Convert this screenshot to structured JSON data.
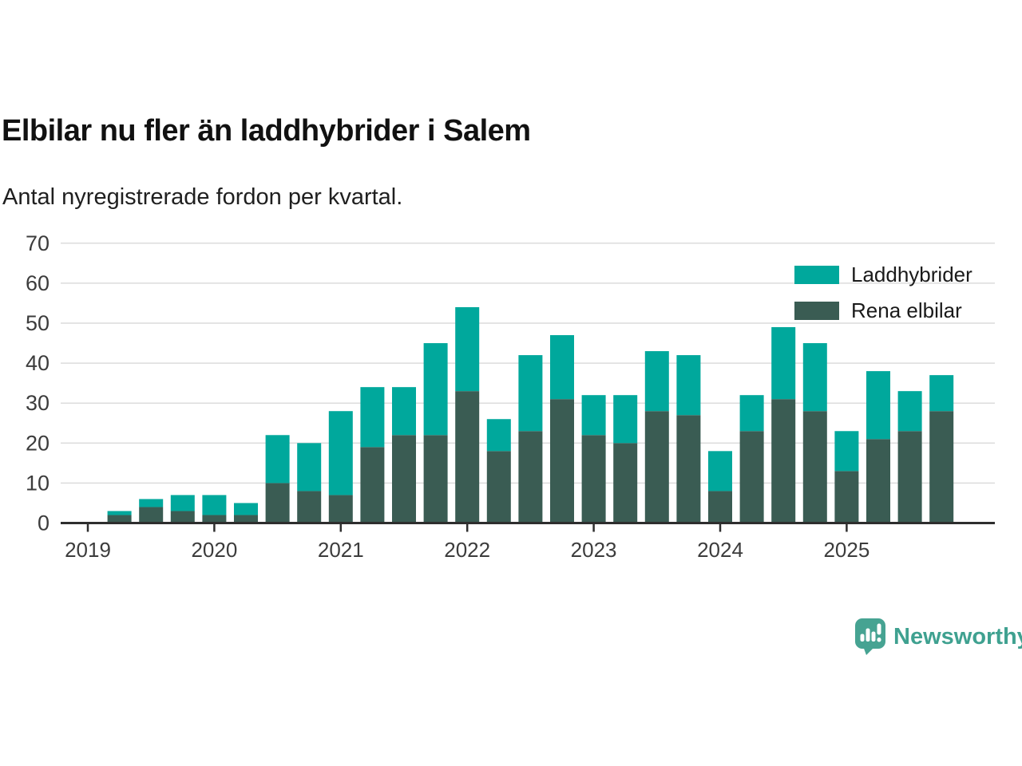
{
  "header": {
    "title": "Elbilar nu fler än laddhybrider i Salem",
    "subtitle": "Antal nyregistrerade fordon per kvartal."
  },
  "legend": {
    "items": [
      {
        "label": "Laddhybrider",
        "color": "#00a89c"
      },
      {
        "label": "Rena elbilar",
        "color": "#3a5c53"
      }
    ]
  },
  "footer": {
    "brand": "Newsworthy",
    "brand_color": "#3fa190"
  },
  "colors": {
    "laddhybrider": "#00a89c",
    "rena_elbilar": "#3a5c53",
    "gridline": "#dcdcdc",
    "axis": "#2e2e2e",
    "axis_text": "#3c3c3c"
  },
  "chart_data": {
    "type": "bar",
    "stacked": true,
    "title": "Elbilar nu fler än laddhybrider i Salem",
    "subtitle": "Antal nyregistrerade fordon per kvartal.",
    "x": [
      "2019Q2",
      "2019Q3",
      "2019Q4",
      "2020Q1",
      "2020Q2",
      "2020Q3",
      "2020Q4",
      "2021Q1",
      "2021Q2",
      "2021Q3",
      "2021Q4",
      "2022Q1",
      "2022Q2",
      "2022Q3",
      "2022Q4",
      "2023Q1",
      "2023Q2",
      "2023Q3",
      "2023Q4",
      "2024Q1",
      "2024Q2",
      "2024Q3",
      "2024Q4",
      "2025Q1",
      "2025Q2",
      "2025Q3",
      "2025Q4"
    ],
    "series": [
      {
        "name": "Laddhybrider",
        "color": "#00a89c",
        "values": [
          1,
          2,
          4,
          5,
          3,
          12,
          12,
          21,
          15,
          12,
          23,
          21,
          8,
          19,
          16,
          10,
          12,
          15,
          15,
          10,
          9,
          18,
          17,
          10,
          17,
          10,
          9
        ]
      },
      {
        "name": "Rena elbilar",
        "color": "#3a5c53",
        "values": [
          2,
          4,
          3,
          2,
          2,
          10,
          8,
          7,
          19,
          22,
          22,
          33,
          18,
          23,
          31,
          22,
          20,
          28,
          27,
          8,
          23,
          31,
          28,
          13,
          21,
          23,
          28
        ]
      }
    ],
    "totals": [
      3,
      6,
      7,
      7,
      5,
      22,
      20,
      28,
      34,
      34,
      45,
      54,
      26,
      42,
      47,
      32,
      32,
      43,
      42,
      18,
      32,
      49,
      45,
      23,
      38,
      33,
      37
    ],
    "stack_order_bottom_to_top": [
      "Rena elbilar",
      "Laddhybrider"
    ],
    "ylim": [
      0,
      70
    ],
    "yticks": [
      0,
      10,
      20,
      30,
      40,
      50,
      60,
      70
    ],
    "xticks": [
      "2019",
      "2020",
      "2021",
      "2022",
      "2023",
      "2024",
      "2025"
    ],
    "grid": true,
    "legend_position": "top-right"
  }
}
